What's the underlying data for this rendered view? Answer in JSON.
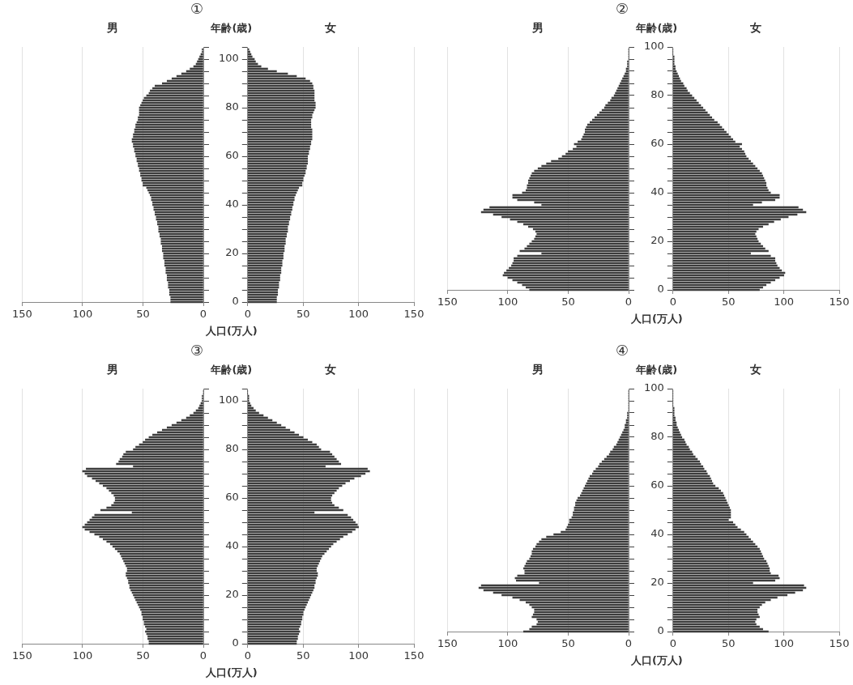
{
  "chart_data": [
    {
      "type": "bar",
      "orientation": "horizontal",
      "title": "①",
      "subtitle": "男",
      "color": "#3d3d3d",
      "grid": "x",
      "tick_labels": "x",
      "x": [
        0,
        1,
        2,
        3,
        4,
        5,
        6,
        7,
        8,
        9,
        10,
        11,
        12,
        13,
        14,
        15,
        16,
        17,
        18,
        19,
        20,
        21,
        22,
        23,
        24,
        25,
        26,
        27,
        28,
        29,
        30,
        31,
        32,
        33,
        34,
        35,
        36,
        37,
        38,
        39,
        40,
        41,
        42,
        43,
        44,
        45,
        46,
        47,
        48,
        49,
        50,
        51,
        52,
        53,
        54,
        55,
        56,
        57,
        58,
        59,
        60,
        61,
        62,
        63,
        64,
        65,
        66,
        67,
        68,
        69,
        70,
        71,
        72,
        73,
        74,
        75,
        76,
        77,
        78,
        79,
        80,
        81,
        82,
        83,
        84,
        85,
        86,
        87,
        88,
        89,
        90,
        91,
        92,
        93,
        94,
        95,
        96,
        97,
        98,
        99,
        100,
        101,
        102,
        103,
        104
      ],
      "values": [
        27,
        27,
        27,
        28,
        28,
        28,
        29,
        29,
        29,
        30,
        30,
        30,
        31,
        31,
        31,
        32,
        32,
        32,
        33,
        33,
        33,
        34,
        34,
        34,
        35,
        35,
        35,
        36,
        36,
        37,
        37,
        37,
        38,
        38,
        39,
        39,
        40,
        40,
        41,
        41,
        42,
        42,
        43,
        43,
        44,
        45,
        46,
        47,
        50,
        50,
        51,
        51,
        52,
        52,
        53,
        53,
        54,
        54,
        55,
        55,
        56,
        56,
        57,
        57,
        58,
        58,
        59,
        59,
        58,
        58,
        57,
        57,
        56,
        56,
        55,
        54,
        54,
        53,
        53,
        53,
        53,
        52,
        51,
        50,
        49,
        47,
        45,
        44,
        42,
        40,
        34,
        30,
        26,
        22,
        18,
        14,
        11,
        8,
        6,
        5,
        4,
        3,
        2,
        1,
        1
      ],
      "xlim": [
        150,
        0
      ],
      "xticks": [
        150,
        100,
        50,
        0
      ],
      "ylim": [
        0,
        105
      ],
      "yticks": [
        0,
        {
          "value": 5,
          "label": null
        },
        {
          "value": 10,
          "label": null
        },
        {
          "value": 15,
          "label": null
        },
        20,
        {
          "value": 25,
          "label": null
        },
        {
          "value": 30,
          "label": null
        },
        {
          "value": 35,
          "label": null
        },
        40,
        {
          "value": 45,
          "label": null
        },
        {
          "value": 50,
          "label": null
        },
        {
          "value": 55,
          "label": null
        },
        60,
        {
          "value": 65,
          "label": null
        },
        {
          "value": 70,
          "label": null
        },
        {
          "value": 75,
          "label": null
        },
        80,
        {
          "value": 85,
          "label": null
        },
        {
          "value": 90,
          "label": null
        },
        {
          "value": 95,
          "label": null
        },
        100,
        {
          "value": 105,
          "label": null
        }
      ]
    },
    {
      "type": "bar",
      "orientation": "horizontal",
      "subtitle": "女",
      "ylabel": "年齢(歳)",
      "xlabel": "人口(万人)",
      "color": "#3d3d3d",
      "grid": "x",
      "x": [
        0,
        1,
        2,
        3,
        4,
        5,
        6,
        7,
        8,
        9,
        10,
        11,
        12,
        13,
        14,
        15,
        16,
        17,
        18,
        19,
        20,
        21,
        22,
        23,
        24,
        25,
        26,
        27,
        28,
        29,
        30,
        31,
        32,
        33,
        34,
        35,
        36,
        37,
        38,
        39,
        40,
        41,
        42,
        43,
        44,
        45,
        46,
        47,
        48,
        49,
        50,
        51,
        52,
        53,
        54,
        55,
        56,
        57,
        58,
        59,
        60,
        61,
        62,
        63,
        64,
        65,
        66,
        67,
        68,
        69,
        70,
        71,
        72,
        73,
        74,
        75,
        76,
        77,
        78,
        79,
        80,
        81,
        82,
        83,
        84,
        85,
        86,
        87,
        88,
        89,
        90,
        91,
        92,
        93,
        94,
        95,
        96,
        97,
        98,
        99,
        100,
        101,
        102,
        103,
        104
      ],
      "values": [
        26,
        26,
        26,
        27,
        27,
        27,
        28,
        28,
        28,
        29,
        29,
        29,
        30,
        30,
        30,
        31,
        31,
        31,
        32,
        32,
        32,
        33,
        33,
        33,
        34,
        34,
        34,
        35,
        35,
        36,
        36,
        36,
        37,
        37,
        38,
        38,
        39,
        39,
        40,
        40,
        41,
        41,
        42,
        42,
        43,
        44,
        45,
        46,
        49,
        49,
        50,
        50,
        51,
        52,
        52,
        53,
        53,
        54,
        54,
        54,
        54,
        55,
        55,
        56,
        56,
        57,
        57,
        58,
        58,
        58,
        58,
        58,
        57,
        57,
        57,
        57,
        58,
        58,
        59,
        60,
        61,
        61,
        61,
        60,
        60,
        60,
        60,
        60,
        59,
        59,
        58,
        56,
        52,
        44,
        36,
        26,
        18,
        12,
        9,
        7,
        6,
        4,
        3,
        2,
        1
      ],
      "xlim": [
        0,
        150
      ],
      "xticks": [
        0,
        50,
        100,
        150
      ],
      "ylim": [
        0,
        105
      ],
      "yticks": [
        0,
        {
          "value": 5,
          "label": null
        },
        {
          "value": 10,
          "label": null
        },
        {
          "value": 15,
          "label": null
        },
        20,
        {
          "value": 25,
          "label": null
        },
        {
          "value": 30,
          "label": null
        },
        {
          "value": 35,
          "label": null
        },
        40,
        {
          "value": 45,
          "label": null
        },
        {
          "value": 50,
          "label": null
        },
        {
          "value": 55,
          "label": null
        },
        60,
        {
          "value": 65,
          "label": null
        },
        {
          "value": 70,
          "label": null
        },
        {
          "value": 75,
          "label": null
        },
        80,
        {
          "value": 85,
          "label": null
        },
        {
          "value": 90,
          "label": null
        },
        {
          "value": 95,
          "label": null
        },
        100,
        {
          "value": 105,
          "label": null
        }
      ]
    },
    {
      "type": "bar",
      "orientation": "horizontal",
      "title": "②",
      "subtitle": "男",
      "color": "#3d3d3d",
      "grid": "x",
      "tick_labels": "x",
      "x": [
        0,
        1,
        2,
        3,
        4,
        5,
        6,
        7,
        8,
        9,
        10,
        11,
        12,
        13,
        14,
        15,
        16,
        17,
        18,
        19,
        20,
        21,
        22,
        23,
        24,
        25,
        26,
        27,
        28,
        29,
        30,
        31,
        32,
        33,
        34,
        35,
        36,
        37,
        38,
        39,
        40,
        41,
        42,
        43,
        44,
        45,
        46,
        47,
        48,
        49,
        50,
        51,
        52,
        53,
        54,
        55,
        56,
        57,
        58,
        59,
        60,
        61,
        62,
        63,
        64,
        65,
        66,
        67,
        68,
        69,
        70,
        71,
        72,
        73,
        74,
        75,
        76,
        77,
        78,
        79,
        80,
        81,
        82,
        83,
        84,
        85,
        86,
        87,
        88,
        89,
        90,
        91,
        92,
        93,
        94,
        95,
        96,
        97,
        98,
        99
      ],
      "values": [
        82,
        85,
        88,
        92,
        96,
        100,
        104,
        103,
        101,
        99,
        97,
        96,
        95,
        95,
        92,
        72,
        90,
        86,
        84,
        82,
        80,
        78,
        77,
        76,
        77,
        79,
        83,
        87,
        92,
        98,
        105,
        112,
        122,
        120,
        115,
        72,
        78,
        92,
        96,
        96,
        88,
        85,
        84,
        84,
        83,
        83,
        82,
        81,
        80,
        78,
        75,
        72,
        68,
        64,
        58,
        55,
        52,
        50,
        46,
        43,
        45,
        42,
        39,
        38,
        37,
        36,
        36,
        35,
        34,
        32,
        30,
        28,
        26,
        24,
        22,
        20,
        19,
        17,
        15,
        14,
        12,
        11,
        10,
        9,
        8,
        7,
        6,
        5,
        4,
        3,
        2,
        2,
        1,
        1,
        1,
        0,
        0,
        0,
        0,
        0
      ],
      "xlim": [
        150,
        0
      ],
      "xticks": [
        150,
        100,
        50,
        0
      ],
      "ylim": [
        0,
        100
      ],
      "yticks": [
        0,
        {
          "value": 5,
          "label": null
        },
        {
          "value": 10,
          "label": null
        },
        {
          "value": 15,
          "label": null
        },
        20,
        {
          "value": 25,
          "label": null
        },
        {
          "value": 30,
          "label": null
        },
        {
          "value": 35,
          "label": null
        },
        40,
        {
          "value": 45,
          "label": null
        },
        {
          "value": 50,
          "label": null
        },
        {
          "value": 55,
          "label": null
        },
        60,
        {
          "value": 65,
          "label": null
        },
        {
          "value": 70,
          "label": null
        },
        {
          "value": 75,
          "label": null
        },
        80,
        {
          "value": 85,
          "label": null
        },
        {
          "value": 90,
          "label": null
        },
        {
          "value": 95,
          "label": null
        },
        100
      ]
    },
    {
      "type": "bar",
      "orientation": "horizontal",
      "subtitle": "女",
      "ylabel": "年齢(歳)",
      "xlabel": "人口(万人)",
      "color": "#3d3d3d",
      "grid": "x",
      "x": [
        0,
        1,
        2,
        3,
        4,
        5,
        6,
        7,
        8,
        9,
        10,
        11,
        12,
        13,
        14,
        15,
        16,
        17,
        18,
        19,
        20,
        21,
        22,
        23,
        24,
        25,
        26,
        27,
        28,
        29,
        30,
        31,
        32,
        33,
        34,
        35,
        36,
        37,
        38,
        39,
        40,
        41,
        42,
        43,
        44,
        45,
        46,
        47,
        48,
        49,
        50,
        51,
        52,
        53,
        54,
        55,
        56,
        57,
        58,
        59,
        60,
        61,
        62,
        63,
        64,
        65,
        66,
        67,
        68,
        69,
        70,
        71,
        72,
        73,
        74,
        75,
        76,
        77,
        78,
        79,
        80,
        81,
        82,
        83,
        84,
        85,
        86,
        87,
        88,
        89,
        90,
        91,
        92,
        93,
        94,
        95,
        96,
        97,
        98,
        99
      ],
      "values": [
        78,
        81,
        84,
        88,
        92,
        96,
        100,
        101,
        98,
        96,
        94,
        93,
        92,
        92,
        88,
        70,
        86,
        83,
        81,
        79,
        77,
        76,
        75,
        74,
        75,
        77,
        81,
        86,
        91,
        97,
        104,
        112,
        120,
        117,
        113,
        72,
        80,
        92,
        96,
        96,
        88,
        86,
        85,
        84,
        84,
        83,
        82,
        81,
        80,
        78,
        76,
        74,
        72,
        70,
        68,
        66,
        65,
        64,
        62,
        60,
        62,
        56,
        54,
        52,
        50,
        48,
        46,
        44,
        42,
        40,
        37,
        35,
        33,
        31,
        29,
        27,
        25,
        23,
        21,
        19,
        17,
        15,
        13,
        12,
        10,
        9,
        7,
        6,
        5,
        4,
        3,
        2,
        2,
        1,
        1,
        1,
        1,
        0,
        0,
        0
      ],
      "xlim": [
        0,
        150
      ],
      "xticks": [
        0,
        50,
        100,
        150
      ],
      "ylim": [
        0,
        100
      ],
      "yticks": [
        0,
        {
          "value": 5,
          "label": null
        },
        {
          "value": 10,
          "label": null
        },
        {
          "value": 15,
          "label": null
        },
        20,
        {
          "value": 25,
          "label": null
        },
        {
          "value": 30,
          "label": null
        },
        {
          "value": 35,
          "label": null
        },
        40,
        {
          "value": 45,
          "label": null
        },
        {
          "value": 50,
          "label": null
        },
        {
          "value": 55,
          "label": null
        },
        60,
        {
          "value": 65,
          "label": null
        },
        {
          "value": 70,
          "label": null
        },
        {
          "value": 75,
          "label": null
        },
        80,
        {
          "value": 85,
          "label": null
        },
        {
          "value": 90,
          "label": null
        },
        {
          "value": 95,
          "label": null
        },
        100
      ]
    },
    {
      "type": "bar",
      "orientation": "horizontal",
      "title": "③",
      "subtitle": "男",
      "color": "#3d3d3d",
      "grid": "x",
      "tick_labels": "x",
      "x": [
        0,
        1,
        2,
        3,
        4,
        5,
        6,
        7,
        8,
        9,
        10,
        11,
        12,
        13,
        14,
        15,
        16,
        17,
        18,
        19,
        20,
        21,
        22,
        23,
        24,
        25,
        26,
        27,
        28,
        29,
        30,
        31,
        32,
        33,
        34,
        35,
        36,
        37,
        38,
        39,
        40,
        41,
        42,
        43,
        44,
        45,
        46,
        47,
        48,
        49,
        50,
        51,
        52,
        53,
        54,
        55,
        56,
        57,
        58,
        59,
        60,
        61,
        62,
        63,
        64,
        65,
        66,
        67,
        68,
        69,
        70,
        71,
        72,
        73,
        74,
        75,
        76,
        77,
        78,
        79,
        80,
        81,
        82,
        83,
        84,
        85,
        86,
        87,
        88,
        89,
        90,
        91,
        92,
        93,
        94,
        95,
        96,
        97,
        98,
        99,
        100,
        101,
        102,
        103,
        104
      ],
      "values": [
        45,
        45,
        46,
        46,
        47,
        48,
        47,
        48,
        49,
        49,
        50,
        50,
        51,
        51,
        52,
        53,
        54,
        55,
        56,
        57,
        58,
        59,
        60,
        61,
        61,
        62,
        62,
        63,
        64,
        64,
        63,
        63,
        64,
        65,
        66,
        67,
        68,
        69,
        71,
        73,
        75,
        77,
        80,
        83,
        86,
        90,
        94,
        98,
        100,
        98,
        96,
        94,
        92,
        90,
        59,
        85,
        80,
        76,
        74,
        73,
        73,
        74,
        76,
        78,
        80,
        83,
        86,
        89,
        92,
        96,
        98,
        100,
        97,
        58,
        72,
        70,
        69,
        67,
        66,
        64,
        58,
        56,
        53,
        50,
        48,
        45,
        42,
        38,
        34,
        30,
        26,
        22,
        18,
        14,
        11,
        8,
        6,
        4,
        3,
        2,
        1,
        1,
        1,
        0,
        0
      ],
      "xlim": [
        150,
        0
      ],
      "xticks": [
        150,
        100,
        50,
        0
      ],
      "ylim": [
        0,
        105
      ],
      "yticks": [
        0,
        {
          "value": 5,
          "label": null
        },
        {
          "value": 10,
          "label": null
        },
        {
          "value": 15,
          "label": null
        },
        20,
        {
          "value": 25,
          "label": null
        },
        {
          "value": 30,
          "label": null
        },
        {
          "value": 35,
          "label": null
        },
        40,
        {
          "value": 45,
          "label": null
        },
        {
          "value": 50,
          "label": null
        },
        {
          "value": 55,
          "label": null
        },
        60,
        {
          "value": 65,
          "label": null
        },
        {
          "value": 70,
          "label": null
        },
        {
          "value": 75,
          "label": null
        },
        80,
        {
          "value": 85,
          "label": null
        },
        {
          "value": 90,
          "label": null
        },
        {
          "value": 95,
          "label": null
        },
        100,
        {
          "value": 105,
          "label": null
        }
      ]
    },
    {
      "type": "bar",
      "orientation": "horizontal",
      "subtitle": "女",
      "ylabel": "年齢(歳)",
      "xlabel": "人口(万人)",
      "color": "#3d3d3d",
      "grid": "x",
      "x": [
        0,
        1,
        2,
        3,
        4,
        5,
        6,
        7,
        8,
        9,
        10,
        11,
        12,
        13,
        14,
        15,
        16,
        17,
        18,
        19,
        20,
        21,
        22,
        23,
        24,
        25,
        26,
        27,
        28,
        29,
        30,
        31,
        32,
        33,
        34,
        35,
        36,
        37,
        38,
        39,
        40,
        41,
        42,
        43,
        44,
        45,
        46,
        47,
        48,
        49,
        50,
        51,
        52,
        53,
        54,
        55,
        56,
        57,
        58,
        59,
        60,
        61,
        62,
        63,
        64,
        65,
        66,
        67,
        68,
        69,
        70,
        71,
        72,
        73,
        74,
        75,
        76,
        77,
        78,
        79,
        80,
        81,
        82,
        83,
        84,
        85,
        86,
        87,
        88,
        89,
        90,
        91,
        92,
        93,
        94,
        95,
        96,
        97,
        98,
        99,
        100,
        101,
        102,
        103,
        104
      ],
      "values": [
        44,
        44,
        45,
        45,
        46,
        47,
        46,
        47,
        48,
        48,
        49,
        49,
        50,
        50,
        51,
        52,
        53,
        54,
        55,
        56,
        57,
        58,
        59,
        60,
        60,
        61,
        61,
        62,
        63,
        63,
        62,
        62,
        63,
        64,
        65,
        66,
        67,
        69,
        71,
        73,
        75,
        77,
        80,
        83,
        86,
        90,
        94,
        97,
        100,
        99,
        97,
        95,
        93,
        90,
        60,
        86,
        82,
        78,
        76,
        75,
        75,
        76,
        78,
        80,
        82,
        85,
        88,
        92,
        96,
        102,
        106,
        110,
        108,
        70,
        84,
        82,
        80,
        78,
        76,
        74,
        66,
        64,
        62,
        58,
        54,
        50,
        46,
        42,
        38,
        34,
        30,
        26,
        22,
        18,
        14,
        10,
        7,
        5,
        3,
        2,
        1,
        1,
        1,
        0,
        0
      ],
      "xlim": [
        0,
        150
      ],
      "xticks": [
        0,
        50,
        100,
        150
      ],
      "ylim": [
        0,
        105
      ],
      "yticks": [
        0,
        {
          "value": 5,
          "label": null
        },
        {
          "value": 10,
          "label": null
        },
        {
          "value": 15,
          "label": null
        },
        20,
        {
          "value": 25,
          "label": null
        },
        {
          "value": 30,
          "label": null
        },
        {
          "value": 35,
          "label": null
        },
        40,
        {
          "value": 45,
          "label": null
        },
        {
          "value": 50,
          "label": null
        },
        {
          "value": 55,
          "label": null
        },
        60,
        {
          "value": 65,
          "label": null
        },
        {
          "value": 70,
          "label": null
        },
        {
          "value": 75,
          "label": null
        },
        80,
        {
          "value": 85,
          "label": null
        },
        {
          "value": 90,
          "label": null
        },
        {
          "value": 95,
          "label": null
        },
        100,
        {
          "value": 105,
          "label": null
        }
      ]
    },
    {
      "type": "bar",
      "orientation": "horizontal",
      "title": "④",
      "subtitle": "男",
      "color": "#3d3d3d",
      "grid": "x",
      "tick_labels": "x",
      "x": [
        0,
        1,
        2,
        3,
        4,
        5,
        6,
        7,
        8,
        9,
        10,
        11,
        12,
        13,
        14,
        15,
        16,
        17,
        18,
        19,
        20,
        21,
        22,
        23,
        24,
        25,
        26,
        27,
        28,
        29,
        30,
        31,
        32,
        33,
        34,
        35,
        36,
        37,
        38,
        39,
        40,
        41,
        42,
        43,
        44,
        45,
        46,
        47,
        48,
        49,
        50,
        51,
        52,
        53,
        54,
        55,
        56,
        57,
        58,
        59,
        60,
        61,
        62,
        63,
        64,
        65,
        66,
        67,
        68,
        69,
        70,
        71,
        72,
        73,
        74,
        75,
        76,
        77,
        78,
        79,
        80,
        81,
        82,
        83,
        84,
        85,
        86,
        87,
        88,
        89,
        90,
        91,
        92,
        93,
        94,
        95,
        96,
        97,
        98,
        99
      ],
      "values": [
        87,
        82,
        80,
        76,
        75,
        76,
        80,
        79,
        78,
        78,
        80,
        82,
        85,
        90,
        96,
        105,
        112,
        120,
        124,
        122,
        74,
        93,
        94,
        92,
        86,
        86,
        87,
        86,
        85,
        84,
        82,
        81,
        80,
        80,
        79,
        77,
        76,
        74,
        72,
        68,
        62,
        56,
        52,
        51,
        50,
        49,
        49,
        47,
        46,
        46,
        45,
        45,
        44,
        44,
        43,
        42,
        40,
        39,
        38,
        37,
        36,
        35,
        34,
        33,
        32,
        30,
        29,
        27,
        25,
        24,
        22,
        20,
        18,
        16,
        15,
        13,
        12,
        10,
        9,
        8,
        7,
        6,
        5,
        4,
        3,
        3,
        2,
        2,
        1,
        1,
        1,
        0,
        0,
        0,
        0,
        0,
        0,
        0,
        0,
        0
      ],
      "xlim": [
        150,
        0
      ],
      "xticks": [
        150,
        100,
        50,
        0
      ],
      "ylim": [
        0,
        100
      ],
      "yticks": [
        0,
        {
          "value": 5,
          "label": null
        },
        {
          "value": 10,
          "label": null
        },
        {
          "value": 15,
          "label": null
        },
        20,
        {
          "value": 25,
          "label": null
        },
        {
          "value": 30,
          "label": null
        },
        {
          "value": 35,
          "label": null
        },
        40,
        {
          "value": 45,
          "label": null
        },
        {
          "value": 50,
          "label": null
        },
        {
          "value": 55,
          "label": null
        },
        60,
        {
          "value": 65,
          "label": null
        },
        {
          "value": 70,
          "label": null
        },
        {
          "value": 75,
          "label": null
        },
        80,
        {
          "value": 85,
          "label": null
        },
        {
          "value": 90,
          "label": null
        },
        {
          "value": 95,
          "label": null
        },
        100
      ]
    },
    {
      "type": "bar",
      "orientation": "horizontal",
      "subtitle": "女",
      "ylabel": "年齢(歳)",
      "xlabel": "人口(万人)",
      "color": "#3d3d3d",
      "grid": "x",
      "x": [
        0,
        1,
        2,
        3,
        4,
        5,
        6,
        7,
        8,
        9,
        10,
        11,
        12,
        13,
        14,
        15,
        16,
        17,
        18,
        19,
        20,
        21,
        22,
        23,
        24,
        25,
        26,
        27,
        28,
        29,
        30,
        31,
        32,
        33,
        34,
        35,
        36,
        37,
        38,
        39,
        40,
        41,
        42,
        43,
        44,
        45,
        46,
        47,
        48,
        49,
        50,
        51,
        52,
        53,
        54,
        55,
        56,
        57,
        58,
        59,
        60,
        61,
        62,
        63,
        64,
        65,
        66,
        67,
        68,
        69,
        70,
        71,
        72,
        73,
        74,
        75,
        76,
        77,
        78,
        79,
        80,
        81,
        82,
        83,
        84,
        85,
        86,
        87,
        88,
        89,
        90,
        91,
        92,
        93,
        94,
        95,
        96,
        97,
        98,
        99
      ],
      "values": [
        86,
        81,
        78,
        75,
        74,
        75,
        78,
        77,
        76,
        76,
        78,
        80,
        83,
        88,
        94,
        103,
        110,
        117,
        120,
        118,
        72,
        92,
        96,
        95,
        88,
        87,
        87,
        86,
        85,
        84,
        82,
        81,
        80,
        79,
        78,
        76,
        74,
        72,
        70,
        68,
        66,
        64,
        61,
        58,
        56,
        54,
        50,
        52,
        52,
        52,
        52,
        51,
        50,
        49,
        48,
        47,
        46,
        45,
        43,
        41,
        38,
        36,
        35,
        34,
        33,
        31,
        30,
        28,
        27,
        25,
        24,
        22,
        20,
        18,
        17,
        15,
        14,
        12,
        11,
        10,
        8,
        7,
        6,
        5,
        4,
        3,
        3,
        2,
        2,
        1,
        1,
        1,
        1,
        0,
        0,
        0,
        0,
        0,
        0,
        0
      ],
      "xlim": [
        0,
        150
      ],
      "xticks": [
        0,
        50,
        100,
        150
      ],
      "ylim": [
        0,
        100
      ],
      "yticks": [
        0,
        {
          "value": 5,
          "label": null
        },
        {
          "value": 10,
          "label": null
        },
        {
          "value": 15,
          "label": null
        },
        20,
        {
          "value": 25,
          "label": null
        },
        {
          "value": 30,
          "label": null
        },
        {
          "value": 35,
          "label": null
        },
        40,
        {
          "value": 45,
          "label": null
        },
        {
          "value": 50,
          "label": null
        },
        {
          "value": 55,
          "label": null
        },
        60,
        {
          "value": 65,
          "label": null
        },
        {
          "value": 70,
          "label": null
        },
        {
          "value": 75,
          "label": null
        },
        80,
        {
          "value": 85,
          "label": null
        },
        {
          "value": 90,
          "label": null
        },
        {
          "value": 95,
          "label": null
        },
        100
      ]
    }
  ]
}
